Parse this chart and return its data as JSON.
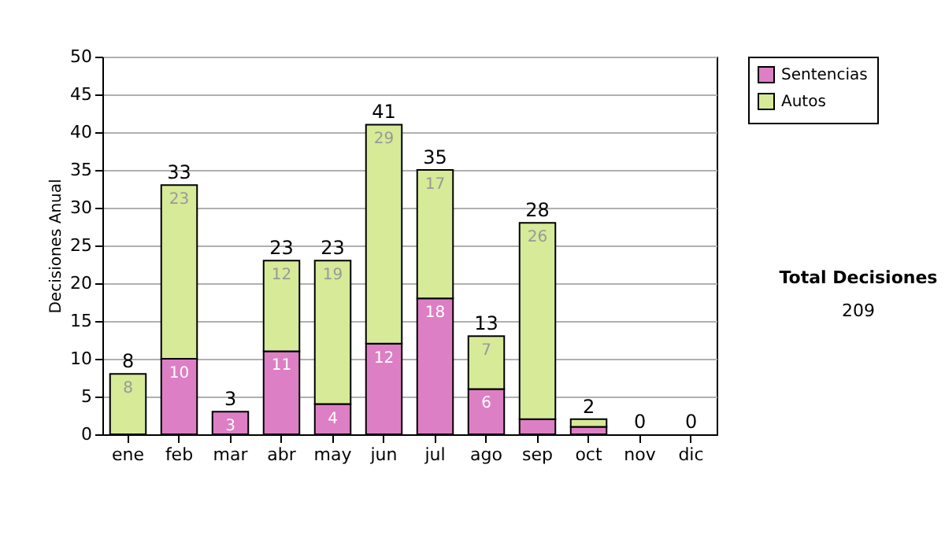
{
  "chart_data": {
    "type": "bar",
    "stacked": true,
    "ylabel": "Decisiones Anual",
    "categories": [
      "ene",
      "feb",
      "mar",
      "abr",
      "may",
      "jun",
      "jul",
      "ago",
      "sep",
      "oct",
      "nov",
      "dic"
    ],
    "series": [
      {
        "name": "Sentencias",
        "color": "#dd7fc4",
        "values": [
          0,
          10,
          3,
          11,
          4,
          12,
          18,
          6,
          2,
          1,
          0,
          0
        ],
        "value_labels": [
          null,
          "10",
          "3",
          "11",
          "4",
          "12",
          "18",
          "6",
          null,
          null,
          null,
          null
        ]
      },
      {
        "name": "Autos",
        "color": "#d6ea98",
        "values": [
          8,
          23,
          0,
          12,
          19,
          29,
          17,
          7,
          26,
          1,
          0,
          0
        ],
        "value_labels": [
          "8",
          "23",
          null,
          "12",
          "19",
          "29",
          "17",
          "7",
          "26",
          null,
          null,
          null
        ]
      }
    ],
    "totals": [
      "8",
      "33",
      "3",
      "23",
      "23",
      "41",
      "35",
      "13",
      "28",
      "2",
      "0",
      "0"
    ],
    "ylim": [
      0,
      50
    ],
    "yticks": [
      0,
      5,
      10,
      15,
      20,
      25,
      30,
      35,
      40,
      45,
      50
    ],
    "grid": "y",
    "legend": "right",
    "annotations": [
      "Total Decisiones",
      "209"
    ]
  }
}
